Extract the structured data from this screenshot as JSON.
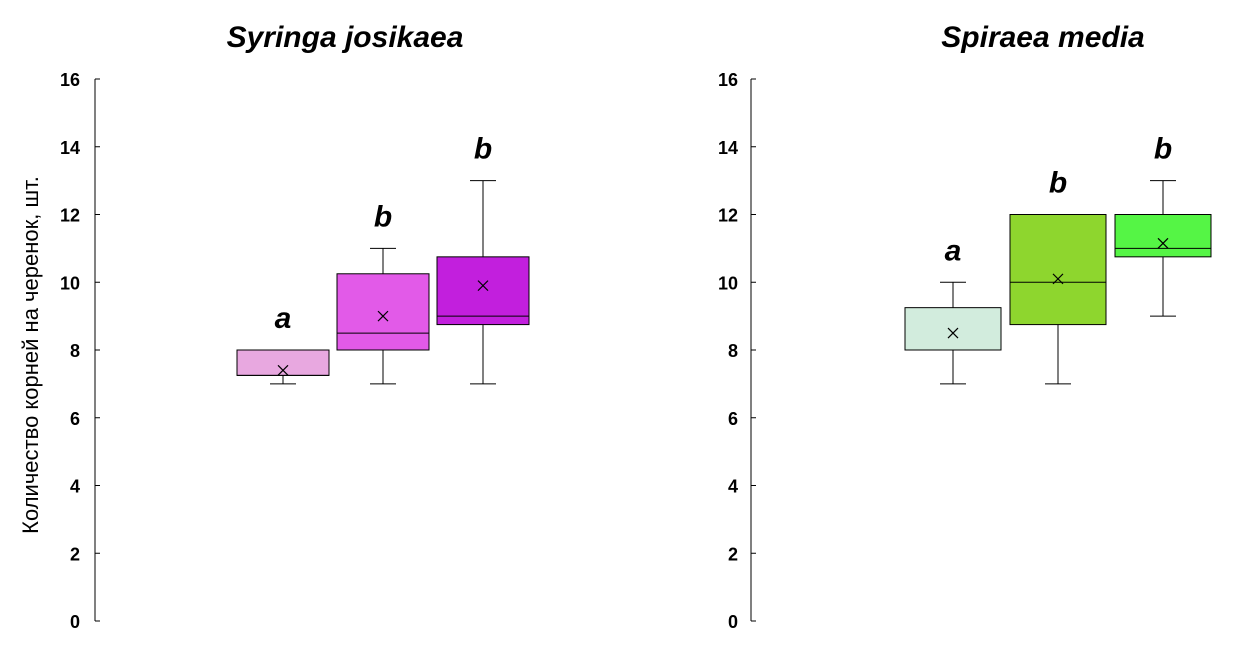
{
  "chart_data": [
    {
      "type": "box",
      "title": "Syringa josikaea",
      "ylabel": "Количество корней на черенок, шт.",
      "ylim": [
        0,
        16
      ],
      "yticks": [
        0,
        2,
        4,
        6,
        8,
        10,
        12,
        14,
        16
      ],
      "boxes": [
        {
          "color": "#e8a8e0",
          "whisker_low": 7,
          "q1": 7.25,
          "median": 7.25,
          "q3": 8,
          "whisker_high": 8,
          "mean": 7.4,
          "letter": "a"
        },
        {
          "color": "#e25ae8",
          "whisker_low": 7,
          "q1": 8,
          "median": 8.5,
          "q3": 10.25,
          "whisker_high": 11,
          "mean": 9,
          "letter": "b"
        },
        {
          "color": "#c21fdd",
          "whisker_low": 7,
          "q1": 8.75,
          "median": 9,
          "q3": 10.75,
          "whisker_high": 13,
          "mean": 9.9,
          "letter": "b"
        }
      ]
    },
    {
      "type": "box",
      "title": "Spiraea media",
      "ylabel": "",
      "ylim": [
        0,
        16
      ],
      "yticks": [
        0,
        2,
        4,
        6,
        8,
        10,
        12,
        14,
        16
      ],
      "boxes": [
        {
          "color": "#d2ecdd",
          "whisker_low": 7,
          "q1": 8,
          "median": 8,
          "q3": 9.25,
          "whisker_high": 10,
          "mean": 8.5,
          "letter": "a"
        },
        {
          "color": "#8ed62e",
          "whisker_low": 7,
          "q1": 8.75,
          "median": 10,
          "q3": 12,
          "whisker_high": 12,
          "mean": 10.1,
          "letter": "b"
        },
        {
          "color": "#55f545",
          "whisker_low": 9,
          "q1": 10.75,
          "median": 11,
          "q3": 12,
          "whisker_high": 13,
          "mean": 11.15,
          "letter": "b"
        }
      ]
    }
  ]
}
